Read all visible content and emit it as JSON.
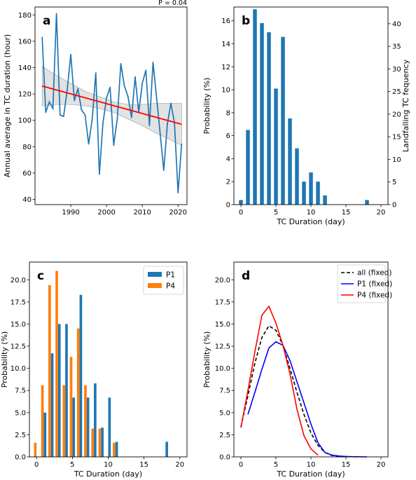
{
  "chart_data": [
    {
      "panel": "a",
      "type": "line",
      "annotation": "P = 0.04",
      "ylabel": "Annual average in TC duration (hour)",
      "xlabel": "",
      "xlim": [
        1980.0,
        2022.5
      ],
      "ylim": [
        36,
        186
      ],
      "xticks": [
        1990,
        2000,
        2010,
        2020
      ],
      "yticks": [
        40,
        60,
        80,
        100,
        120,
        140,
        160,
        180
      ],
      "grid": false,
      "series": [
        {
          "color": "#1f77b4",
          "x": [
            1982,
            1983,
            1984,
            1985,
            1986,
            1987,
            1988,
            1989,
            1990,
            1991,
            1992,
            1993,
            1994,
            1995,
            1996,
            1997,
            1998,
            1999,
            2000,
            2001,
            2002,
            2003,
            2004,
            2005,
            2006,
            2007,
            2008,
            2009,
            2010,
            2011,
            2012,
            2013,
            2014,
            2015,
            2016,
            2017,
            2018,
            2019,
            2020,
            2021
          ],
          "y": [
            163,
            106,
            114,
            109,
            181,
            104,
            103,
            123,
            150,
            115,
            124,
            108,
            104,
            82,
            101,
            136,
            59,
            98,
            117,
            125,
            81,
            101,
            143,
            126,
            118,
            102,
            133,
            106,
            128,
            138,
            96,
            144,
            117,
            90,
            62,
            97,
            113,
            98,
            45,
            82
          ]
        }
      ],
      "trend": {
        "color": "#ff0000",
        "x": [
          1982,
          2021
        ],
        "y": [
          126,
          97
        ]
      },
      "ci_band": {
        "color": "#bfbfbf",
        "x": [
          1982,
          1986,
          1990,
          1994,
          1998,
          2002,
          2006,
          2010,
          2014,
          2018,
          2021
        ],
        "upper": [
          141,
          134,
          128,
          122,
          118,
          114,
          112,
          112,
          113,
          113,
          113
        ],
        "lower": [
          111,
          112,
          112,
          111,
          109,
          106,
          101,
          96,
          90,
          85,
          81
        ]
      }
    },
    {
      "panel": "b",
      "type": "bar",
      "xlabel": "TC Duration (day)",
      "ylabel": "Probability (%)",
      "ylabel_right": "Landfalling TC fequency",
      "xlim": [
        -1,
        21
      ],
      "ylim": [
        0,
        17.2
      ],
      "ylim_right": [
        0,
        43.7
      ],
      "xticks": [
        0,
        5,
        10,
        15,
        20
      ],
      "yticks": [
        0,
        2,
        4,
        6,
        8,
        10,
        12,
        14,
        16
      ],
      "yticks_right": [
        0,
        5,
        10,
        15,
        20,
        25,
        30,
        35,
        40
      ],
      "grid": false,
      "color": "#1f77b4",
      "x": [
        0,
        1,
        2,
        3,
        4,
        5,
        6,
        7,
        8,
        9,
        10,
        11,
        12,
        13,
        14,
        15,
        16,
        17,
        18
      ],
      "values": [
        0.4,
        6.5,
        17.0,
        15.8,
        15.0,
        10.1,
        14.6,
        7.5,
        4.9,
        2.0,
        2.8,
        2.0,
        0.8,
        0,
        0,
        0,
        0,
        0,
        0.4
      ]
    },
    {
      "panel": "c",
      "type": "bar",
      "xlabel": "TC Duration (day)",
      "ylabel": "Probability (%)",
      "xlim": [
        -1,
        21
      ],
      "ylim": [
        0,
        22
      ],
      "xticks": [
        0,
        5,
        10,
        15,
        20
      ],
      "yticks": [
        0.0,
        2.5,
        5.0,
        7.5,
        10.0,
        12.5,
        15.0,
        17.5,
        20.0
      ],
      "grid": false,
      "legend_position": "top-right",
      "x": [
        0,
        1,
        2,
        3,
        4,
        5,
        6,
        7,
        8,
        9,
        10,
        11,
        12,
        13,
        14,
        15,
        16,
        17,
        18
      ],
      "series": [
        {
          "name": "P1",
          "color": "#1f77b4",
          "values": [
            0,
            5.0,
            11.7,
            15.0,
            15.0,
            6.7,
            18.3,
            6.7,
            8.3,
            3.3,
            6.7,
            1.7,
            0,
            0,
            0,
            0,
            0,
            0,
            1.7
          ]
        },
        {
          "name": "P4",
          "color": "#ff7f0e",
          "values": [
            1.6,
            8.1,
            19.4,
            21.0,
            8.1,
            11.3,
            14.5,
            8.1,
            3.2,
            3.2,
            0,
            1.6,
            0,
            0,
            0,
            0,
            0,
            0,
            0
          ]
        }
      ]
    },
    {
      "panel": "d",
      "type": "line",
      "xlabel": "TC Duration (day)",
      "ylabel": "Probability (%)",
      "xlim": [
        -1,
        21
      ],
      "ylim": [
        0,
        22
      ],
      "xticks": [
        0,
        5,
        10,
        15,
        20
      ],
      "yticks": [
        0.0,
        2.5,
        5.0,
        7.5,
        10.0,
        12.5,
        15.0,
        17.5,
        20.0
      ],
      "grid": false,
      "legend_position": "top-right",
      "series": [
        {
          "name": "all (fixed)",
          "color": "#000000",
          "dash": true,
          "x": [
            0,
            1,
            2,
            3,
            4,
            5,
            6,
            7,
            8,
            9,
            10,
            11,
            12,
            13,
            14,
            15
          ],
          "values": [
            3.4,
            6.9,
            10.6,
            13.5,
            14.8,
            14.3,
            12.6,
            10.0,
            7.3,
            4.8,
            2.7,
            1.3,
            0.5,
            0.15,
            0.05,
            0
          ]
        },
        {
          "name": "P1 (fixed)",
          "color": "#0000ff",
          "dash": false,
          "x": [
            1,
            2,
            3,
            4,
            5,
            6,
            7,
            8,
            9,
            10,
            11,
            12,
            13,
            14,
            15,
            16,
            17,
            18
          ],
          "values": [
            4.8,
            7.3,
            9.9,
            12.3,
            13.0,
            12.6,
            10.9,
            8.5,
            6.1,
            3.7,
            1.6,
            0.5,
            0.2,
            0.1,
            0.05,
            0.02,
            0.01,
            0
          ]
        },
        {
          "name": "P4 (fixed)",
          "color": "#ff0000",
          "dash": false,
          "x": [
            0,
            1,
            2,
            3,
            4,
            5,
            6,
            7,
            8,
            9,
            10,
            11
          ],
          "values": [
            3.3,
            7.5,
            11.9,
            16.0,
            17.0,
            15.1,
            12.6,
            9.4,
            5.4,
            2.4,
            0.9,
            0.2
          ]
        }
      ]
    }
  ]
}
